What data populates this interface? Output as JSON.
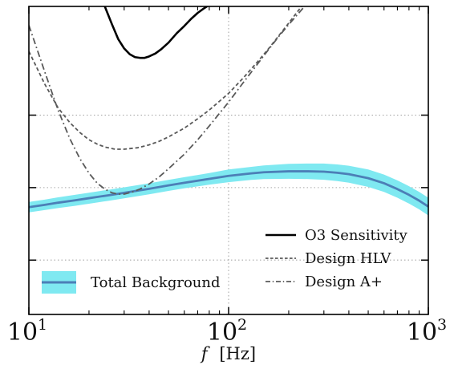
{
  "chart_data": {
    "type": "line",
    "title": "",
    "xlabel_italic": "f",
    "xlabel_unit": "[Hz]",
    "xscale": "log",
    "xlim": [
      10,
      1000
    ],
    "x_ticks": [
      {
        "value": 10,
        "base": "10",
        "exponent": "1"
      },
      {
        "value": 100,
        "base": "10",
        "exponent": "2"
      },
      {
        "value": 1000,
        "base": "10",
        "exponent": "3"
      }
    ],
    "ylabel": "",
    "y_tick_labels_visible": false,
    "y_ticks_data": [
      -1,
      0,
      1
    ],
    "ylim": [
      -1.75,
      2.5
    ],
    "grid": {
      "style": "dotted",
      "color": "#a8a8a8"
    },
    "legend": {
      "placement": "lower-right and lower-left"
    },
    "series": [
      {
        "name": "Total Background",
        "style": "solid",
        "color": "#4c7fb7",
        "band_color": "#7fe9f1",
        "legend_text": "Total Background",
        "x": [
          10,
          12,
          14,
          17,
          20,
          25,
          30,
          40,
          50,
          60,
          80,
          100,
          130,
          150,
          200,
          250,
          300,
          350,
          400,
          500,
          600,
          700,
          800,
          900,
          1000
        ],
        "y": [
          -0.27,
          -0.238,
          -0.208,
          -0.176,
          -0.146,
          -0.106,
          -0.072,
          -0.016,
          0.03,
          0.067,
          0.12,
          0.162,
          0.196,
          0.212,
          0.225,
          0.225,
          0.22,
          0.205,
          0.185,
          0.13,
          0.06,
          -0.02,
          -0.1,
          -0.18,
          -0.262
        ],
        "band_lower": [
          -0.342,
          -0.31,
          -0.282,
          -0.252,
          -0.222,
          -0.182,
          -0.148,
          -0.092,
          -0.046,
          -0.01,
          0.04,
          0.075,
          0.106,
          0.118,
          0.122,
          0.118,
          0.108,
          0.09,
          0.068,
          0.01,
          -0.06,
          -0.14,
          -0.22,
          -0.3,
          -0.385
        ],
        "band_upper": [
          -0.198,
          -0.166,
          -0.134,
          -0.1,
          -0.07,
          -0.03,
          0.004,
          0.06,
          0.106,
          0.144,
          0.2,
          0.25,
          0.286,
          0.306,
          0.328,
          0.332,
          0.332,
          0.32,
          0.302,
          0.25,
          0.18,
          0.1,
          0.02,
          -0.06,
          -0.14
        ]
      },
      {
        "name": "O3 Sensitivity",
        "style": "solid",
        "color": "#000000",
        "legend_text": "O3 Sensitivity",
        "x": [
          24,
          26,
          28,
          30,
          32,
          34,
          36,
          38,
          40,
          43,
          46,
          50,
          55,
          60,
          65,
          70,
          75,
          80
        ],
        "y": [
          2.5,
          2.26,
          2.05,
          1.92,
          1.84,
          1.8,
          1.79,
          1.79,
          1.81,
          1.85,
          1.91,
          2.0,
          2.13,
          2.23,
          2.33,
          2.41,
          2.47,
          2.52
        ]
      },
      {
        "name": "Design HLV",
        "style": "dashed",
        "color": "#595959",
        "legend_text": "Design HLV",
        "x": [
          10,
          12,
          14,
          16,
          18,
          20,
          22,
          24,
          27,
          30,
          35,
          40,
          45,
          50,
          60,
          70,
          80,
          100,
          120,
          140,
          160,
          180,
          200,
          220,
          240
        ],
        "y": [
          1.88,
          1.43,
          1.1,
          0.9,
          0.76,
          0.66,
          0.6,
          0.56,
          0.53,
          0.53,
          0.55,
          0.59,
          0.64,
          0.7,
          0.82,
          0.95,
          1.07,
          1.3,
          1.53,
          1.74,
          1.93,
          2.11,
          2.27,
          2.42,
          2.55
        ]
      },
      {
        "name": "Design A+",
        "style": "dashdot",
        "color": "#595959",
        "legend_text": "Design A+",
        "x": [
          10,
          12,
          14,
          16,
          18,
          20,
          22,
          24,
          26,
          28,
          30,
          33,
          36,
          40,
          45,
          50,
          60,
          70,
          80,
          100,
          120,
          140,
          160,
          180,
          200,
          220,
          240,
          260
        ],
        "y": [
          2.24,
          1.6,
          1.07,
          0.68,
          0.4,
          0.2,
          0.06,
          -0.02,
          -0.07,
          -0.09,
          -0.09,
          -0.06,
          -0.02,
          0.05,
          0.15,
          0.26,
          0.46,
          0.66,
          0.85,
          1.18,
          1.47,
          1.71,
          1.92,
          2.1,
          2.25,
          2.38,
          2.5,
          2.6
        ]
      }
    ]
  }
}
